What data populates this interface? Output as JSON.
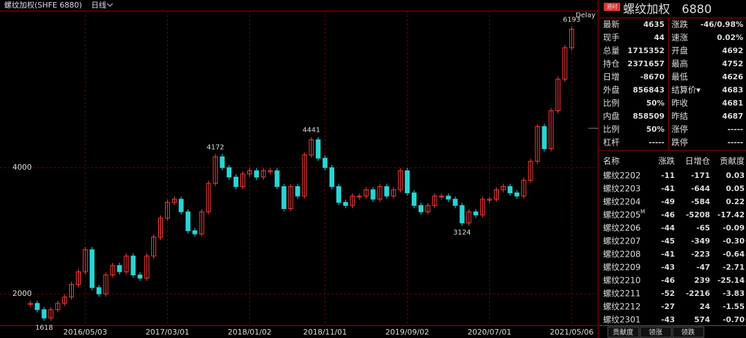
{
  "header": {
    "title": "螺纹加权(SHFE 6880)",
    "period": "日线",
    "status": "Delay"
  },
  "chart_data": {
    "type": "candle-line",
    "categories": [
      "",
      null,
      null,
      null,
      null,
      null,
      null,
      null,
      "2016/05/03",
      null,
      null,
      null,
      null,
      null,
      null,
      null,
      null,
      null,
      null,
      null,
      "2017/03/01",
      null,
      null,
      null,
      null,
      null,
      null,
      null,
      null,
      null,
      null,
      null,
      "2018/01/02",
      null,
      null,
      null,
      null,
      null,
      null,
      null,
      null,
      null,
      null,
      "2018/11/01",
      null,
      null,
      null,
      null,
      null,
      null,
      null,
      null,
      null,
      null,
      null,
      "2019/09/02",
      null,
      null,
      null,
      null,
      null,
      null,
      null,
      null,
      null,
      null,
      null,
      "2020/07/01",
      null,
      null,
      null,
      null,
      null,
      null,
      null,
      null,
      null,
      null,
      null,
      "2021/05/06"
    ],
    "values": [
      1850,
      1750,
      1618,
      1750,
      1850,
      1950,
      2150,
      2350,
      2700,
      2100,
      2000,
      2300,
      2450,
      2350,
      2600,
      2300,
      2250,
      2600,
      2900,
      3200,
      3450,
      3500,
      3300,
      3000,
      2950,
      3300,
      3750,
      4172,
      4000,
      3850,
      3700,
      3900,
      3950,
      3850,
      3950,
      3950,
      3700,
      3350,
      3700,
      3550,
      4200,
      4441,
      4150,
      4000,
      3700,
      3450,
      3400,
      3550,
      3550,
      3650,
      3500,
      3700,
      3550,
      3650,
      3950,
      3600,
      3400,
      3300,
      3400,
      3550,
      3550,
      3500,
      3400,
      3124,
      3300,
      3250,
      3500,
      3500,
      3650,
      3700,
      3600,
      3550,
      3800,
      4100,
      4650,
      4300,
      4900,
      5400,
      5900,
      6193
    ],
    "value_labels": [
      null,
      null,
      "1618",
      null,
      null,
      null,
      null,
      null,
      null,
      null,
      null,
      null,
      null,
      null,
      null,
      null,
      null,
      null,
      null,
      null,
      null,
      null,
      null,
      null,
      null,
      null,
      null,
      "4172",
      null,
      null,
      null,
      null,
      null,
      null,
      null,
      null,
      null,
      null,
      null,
      null,
      null,
      "4441",
      null,
      null,
      null,
      null,
      null,
      null,
      null,
      null,
      null,
      null,
      null,
      null,
      null,
      null,
      null,
      null,
      null,
      null,
      null,
      null,
      null,
      "3124",
      null,
      null,
      null,
      null,
      null,
      null,
      null,
      null,
      null,
      null,
      null,
      null,
      null,
      null,
      null,
      "6193"
    ],
    "up_color": "#ff3c3c",
    "down_color": "#2ad4d4",
    "ylim": [
      1520,
      6480
    ],
    "yticks": [
      2000,
      4000
    ],
    "grid": true
  },
  "panel": {
    "badge": "港时",
    "name": "螺纹加权",
    "code": "6880",
    "quotes": [
      {
        "label": "最新",
        "value": "4635",
        "color": "#2fd42f",
        "label2": "涨跌",
        "value2": "-46/0.98%",
        "color2": "#2fd42f"
      },
      {
        "label": "现手",
        "value": "44",
        "color": "#f0e030",
        "label2": "速涨",
        "value2": "0.02%",
        "color2": "#ff3c3c"
      },
      {
        "label": "总量",
        "value": "1715352",
        "color": "#f0e030",
        "label2": "开盘",
        "value2": "4692",
        "color2": "#ff3c3c"
      },
      {
        "label": "持仓",
        "value": "2371657",
        "color": "#f0e030",
        "label2": "最高",
        "value2": "4752",
        "color2": "#ff3c3c"
      },
      {
        "label": "日增",
        "value": "-8670",
        "color": "#f0e030",
        "label2": "最低",
        "value2": "4626",
        "color2": "#2fd42f"
      },
      {
        "label": "外盘",
        "value": "856843",
        "color": "#f0e030",
        "label2": "结算价▾",
        "value2": "4683",
        "color2": "#ff3c3c"
      },
      {
        "label": "比例",
        "value": "50%",
        "color": "#f0e030",
        "label2": "昨收",
        "value2": "4681",
        "color2": "#ffffff"
      },
      {
        "label": "内盘",
        "value": "858509",
        "color": "#f0e030",
        "label2": "昨结",
        "value2": "4687",
        "color2": "#ffffff"
      },
      {
        "label": "比例",
        "value": "50%",
        "color": "#f0e030",
        "label2": "涨停",
        "value2": "-----",
        "color2": "#ff3c3c"
      },
      {
        "label": "杠杆",
        "value": "-----",
        "color": "#f0e030",
        "label2": "跌停",
        "value2": "-----",
        "color2": "#2fd42f"
      }
    ],
    "table": {
      "columns": [
        "名称",
        "涨跌",
        "日增仓",
        "贡献度"
      ],
      "rows": [
        [
          "螺纹2202",
          "-11",
          "-171",
          "0.03"
        ],
        [
          "螺纹2203",
          "-41",
          "-644",
          "0.05"
        ],
        [
          "螺纹2204",
          "-49",
          "-584",
          "0.22"
        ],
        [
          "螺纹2205",
          "-46",
          "-5208",
          "-17.42"
        ],
        [
          "螺纹2206",
          "-44",
          "-65",
          "-0.09"
        ],
        [
          "螺纹2207",
          "-45",
          "-349",
          "-0.30"
        ],
        [
          "螺纹2208",
          "-41",
          "-223",
          "-0.64"
        ],
        [
          "螺纹2209",
          "-43",
          "-47",
          "-2.71"
        ],
        [
          "螺纹2210",
          "-46",
          "239",
          "-25.14"
        ],
        [
          "螺纹2211",
          "-52",
          "-2216",
          "-3.83"
        ],
        [
          "螺纹2212",
          "-27",
          "24",
          "-1.55"
        ],
        [
          "螺纹2301",
          "-43",
          "574",
          "-0.70"
        ]
      ],
      "main_marker": "M"
    },
    "tabs": [
      "贡献度",
      "领涨",
      "领跌"
    ]
  }
}
